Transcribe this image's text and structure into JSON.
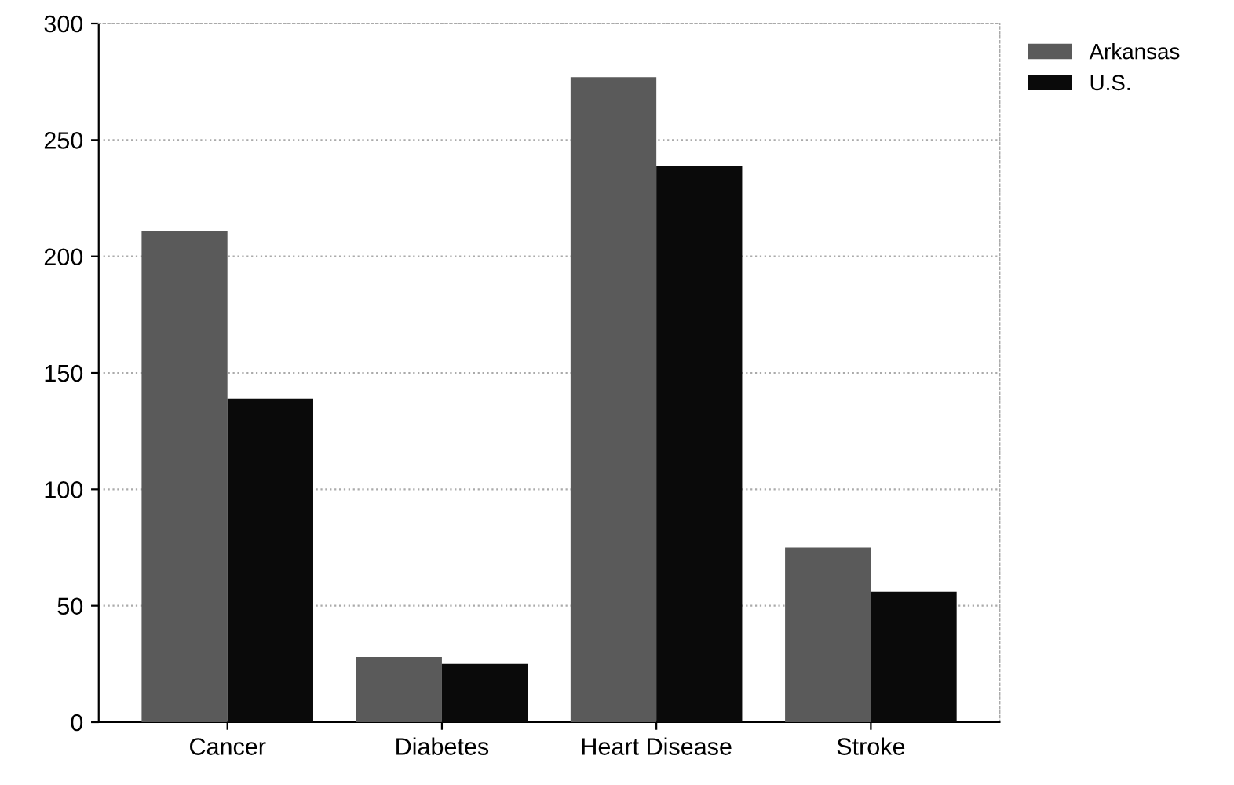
{
  "chart_data": {
    "type": "bar",
    "categories": [
      "Cancer",
      "Diabetes",
      "Heart Disease",
      "Stroke"
    ],
    "series": [
      {
        "name": "Arkansas",
        "color": "#5a5a5a",
        "values": [
          211,
          28,
          277,
          75
        ]
      },
      {
        "name": "U.S.",
        "color": "#0a0a0a",
        "values": [
          139,
          25,
          239,
          56
        ]
      }
    ],
    "ylim": [
      0,
      300
    ],
    "yticks": [
      0,
      50,
      100,
      150,
      200,
      250,
      300
    ],
    "grid": "y",
    "legend": "top right"
  }
}
